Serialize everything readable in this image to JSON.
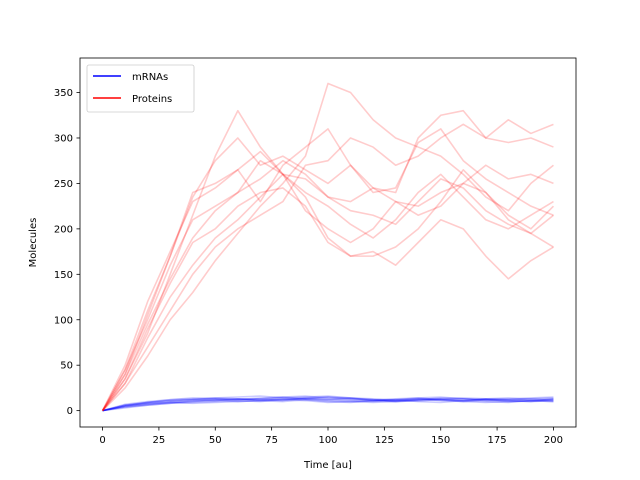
{
  "chart_data": {
    "type": "line",
    "xlabel": "Time [au]",
    "ylabel": "Molecules",
    "xlim": [
      -10,
      210
    ],
    "ylim": [
      -18,
      388
    ],
    "xticks": [
      0,
      25,
      50,
      75,
      100,
      125,
      150,
      175,
      200
    ],
    "yticks": [
      0,
      50,
      100,
      150,
      200,
      250,
      300,
      350
    ],
    "grid": false,
    "legend": {
      "placement": "top-left",
      "entries": [
        {
          "label": "mRNAs",
          "color": "#0000ff"
        },
        {
          "label": "Proteins",
          "color": "#ff0000"
        }
      ]
    },
    "x": [
      0,
      10,
      20,
      30,
      40,
      50,
      60,
      70,
      80,
      90,
      100,
      110,
      120,
      130,
      140,
      150,
      160,
      170,
      180,
      190,
      200
    ],
    "series": [
      {
        "group": "mRNAs",
        "color": "#0000ff",
        "values": [
          0,
          6,
          9,
          11,
          12,
          13,
          12,
          14,
          15,
          13,
          12,
          14,
          11,
          10,
          12,
          13,
          11,
          12,
          10,
          11,
          12
        ]
      },
      {
        "group": "mRNAs",
        "color": "#0000ff",
        "values": [
          0,
          5,
          7,
          9,
          10,
          11,
          13,
          12,
          11,
          14,
          15,
          13,
          12,
          10,
          11,
          12,
          13,
          11,
          12,
          13,
          11
        ]
      },
      {
        "group": "mRNAs",
        "color": "#0000ff",
        "values": [
          0,
          4,
          6,
          8,
          11,
          12,
          10,
          11,
          13,
          12,
          10,
          9,
          11,
          12,
          13,
          11,
          10,
          12,
          11,
          10,
          13
        ]
      },
      {
        "group": "mRNAs",
        "color": "#0000ff",
        "values": [
          0,
          7,
          10,
          12,
          13,
          14,
          15,
          16,
          14,
          13,
          15,
          14,
          13,
          12,
          14,
          15,
          13,
          12,
          13,
          14,
          15
        ]
      },
      {
        "group": "mRNAs",
        "color": "#0000ff",
        "values": [
          0,
          5,
          8,
          9,
          8,
          9,
          10,
          11,
          12,
          11,
          9,
          10,
          11,
          12,
          10,
          9,
          11,
          10,
          9,
          11,
          10
        ]
      },
      {
        "group": "mRNAs",
        "color": "#0000ff",
        "values": [
          0,
          6,
          8,
          10,
          12,
          11,
          12,
          13,
          12,
          14,
          13,
          12,
          11,
          13,
          14,
          12,
          11,
          13,
          12,
          11,
          12
        ]
      },
      {
        "group": "mRNAs",
        "color": "#0000ff",
        "values": [
          0,
          3,
          6,
          8,
          9,
          10,
          11,
          10,
          12,
          13,
          12,
          11,
          10,
          11,
          12,
          14,
          13,
          12,
          11,
          10,
          11
        ]
      },
      {
        "group": "mRNAs",
        "color": "#0000ff",
        "values": [
          0,
          6,
          9,
          12,
          14,
          13,
          12,
          13,
          15,
          16,
          14,
          13,
          12,
          11,
          13,
          12,
          11,
          13,
          14,
          12,
          13
        ]
      },
      {
        "group": "mRNAs",
        "color": "#0000ff",
        "values": [
          0,
          4,
          7,
          9,
          10,
          12,
          13,
          11,
          10,
          12,
          11,
          10,
          9,
          10,
          11,
          12,
          10,
          9,
          10,
          11,
          10
        ]
      },
      {
        "group": "mRNAs",
        "color": "#0000ff",
        "values": [
          0,
          5,
          9,
          11,
          12,
          14,
          13,
          12,
          14,
          15,
          16,
          14,
          12,
          11,
          12,
          13,
          14,
          13,
          12,
          13,
          14
        ]
      },
      {
        "group": "Proteins",
        "color": "#ff0000",
        "values": [
          0,
          35,
          85,
          150,
          215,
          280,
          330,
          290,
          260,
          240,
          225,
          205,
          190,
          210,
          240,
          260,
          235,
          210,
          200,
          215,
          230
        ]
      },
      {
        "group": "Proteins",
        "color": "#ff0000",
        "values": [
          0,
          45,
          110,
          170,
          235,
          275,
          300,
          270,
          280,
          265,
          250,
          270,
          240,
          245,
          295,
          310,
          275,
          255,
          240,
          225,
          215
        ]
      },
      {
        "group": "Proteins",
        "color": "#ff0000",
        "values": [
          0,
          30,
          70,
          110,
          150,
          180,
          200,
          215,
          230,
          270,
          275,
          300,
          290,
          270,
          280,
          300,
          315,
          300,
          295,
          300,
          290
        ]
      },
      {
        "group": "Proteins",
        "color": "#ff0000",
        "values": [
          0,
          50,
          120,
          175,
          230,
          245,
          265,
          230,
          270,
          290,
          310,
          270,
          245,
          240,
          300,
          325,
          330,
          300,
          320,
          305,
          315
        ]
      },
      {
        "group": "Proteins",
        "color": "#ff0000",
        "values": [
          0,
          25,
          60,
          100,
          130,
          165,
          195,
          225,
          250,
          280,
          360,
          350,
          320,
          300,
          290,
          280,
          260,
          235,
          220,
          250,
          270
        ]
      },
      {
        "group": "Proteins",
        "color": "#ff0000",
        "values": [
          0,
          40,
          95,
          145,
          190,
          220,
          240,
          255,
          275,
          260,
          235,
          230,
          245,
          230,
          225,
          240,
          250,
          240,
          215,
          200,
          225
        ]
      },
      {
        "group": "Proteins",
        "color": "#ff0000",
        "values": [
          0,
          45,
          100,
          160,
          210,
          225,
          240,
          275,
          260,
          235,
          190,
          170,
          170,
          180,
          200,
          230,
          265,
          240,
          210,
          195,
          180
        ]
      },
      {
        "group": "Proteins",
        "color": "#ff0000",
        "values": [
          0,
          35,
          90,
          140,
          185,
          200,
          225,
          240,
          245,
          225,
          185,
          170,
          175,
          160,
          185,
          210,
          200,
          170,
          145,
          165,
          180
        ]
      },
      {
        "group": "Proteins",
        "color": "#ff0000",
        "values": [
          0,
          40,
          105,
          170,
          240,
          250,
          265,
          285,
          260,
          220,
          200,
          185,
          200,
          230,
          215,
          225,
          250,
          270,
          255,
          260,
          250
        ]
      },
      {
        "group": "Proteins",
        "color": "#ff0000",
        "values": [
          0,
          30,
          80,
          125,
          160,
          190,
          210,
          235,
          260,
          255,
          235,
          220,
          215,
          205,
          230,
          255,
          245,
          220,
          205,
          195,
          215
        ]
      }
    ]
  }
}
